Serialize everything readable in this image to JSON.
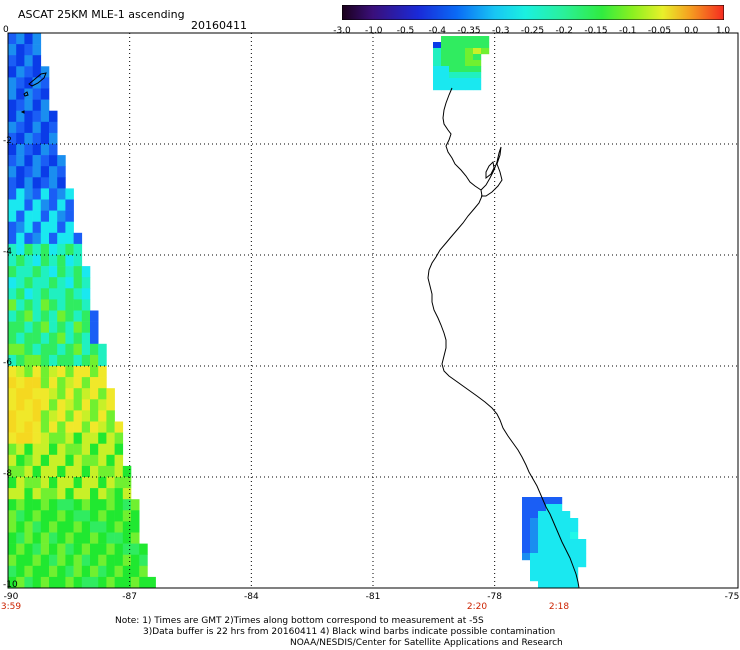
{
  "header": {
    "title": "ASCAT 25KM MLE-1 ascending",
    "date": "20160411"
  },
  "colorbar": {
    "labels": [
      "-3.0",
      "-1.0",
      "-0.5",
      "-0.4",
      "-0.35",
      "-0.3",
      "-0.25",
      "-0.2",
      "-0.15",
      "-0.1",
      "-0.05",
      "0.0",
      "1.0"
    ],
    "colors": [
      "#2a0a2a",
      "#3a0f7a",
      "#1a2ad8",
      "#0a5af5",
      "#1a8af5",
      "#18c6f4",
      "#1af0e0",
      "#2af09a",
      "#30ec40",
      "#8af020",
      "#e8f02a",
      "#f5a020",
      "#f52a20"
    ]
  },
  "map": {
    "lat_labels": [
      "0",
      "-2",
      "-4",
      "-6",
      "-8",
      "-10"
    ],
    "lon_labels": [
      "-90",
      "-87",
      "-84",
      "-81",
      "-78",
      "-75"
    ],
    "time_labels": [
      "3:59",
      "2:20",
      "2:18"
    ]
  },
  "footer": {
    "line1": "Note: 1) Times are GMT 2)Times along bottom correspond to measurement at -5S",
    "line2": "3)Data buffer is 22 hrs from 20160411 4) Black wind barbs indicate possible contamination",
    "line3": "NOAA/NESDIS/Center for Satellite Applications and Research"
  }
}
